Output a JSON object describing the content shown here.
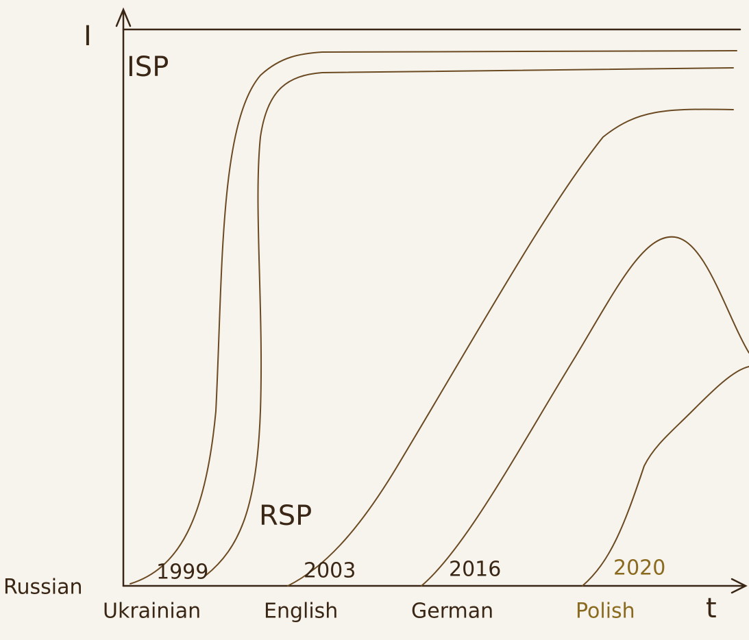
{
  "axes": {
    "y_label": "I",
    "x_label": "t"
  },
  "curve_labels": {
    "top": "ISP",
    "middle": "RSP"
  },
  "baseline_language": "Russian",
  "languages": [
    {
      "name": "Ukrainian",
      "year": 1999
    },
    {
      "name": "English",
      "year": 2003
    },
    {
      "name": "German",
      "year": 2016
    },
    {
      "name": "Polish",
      "year": 2020
    }
  ]
}
